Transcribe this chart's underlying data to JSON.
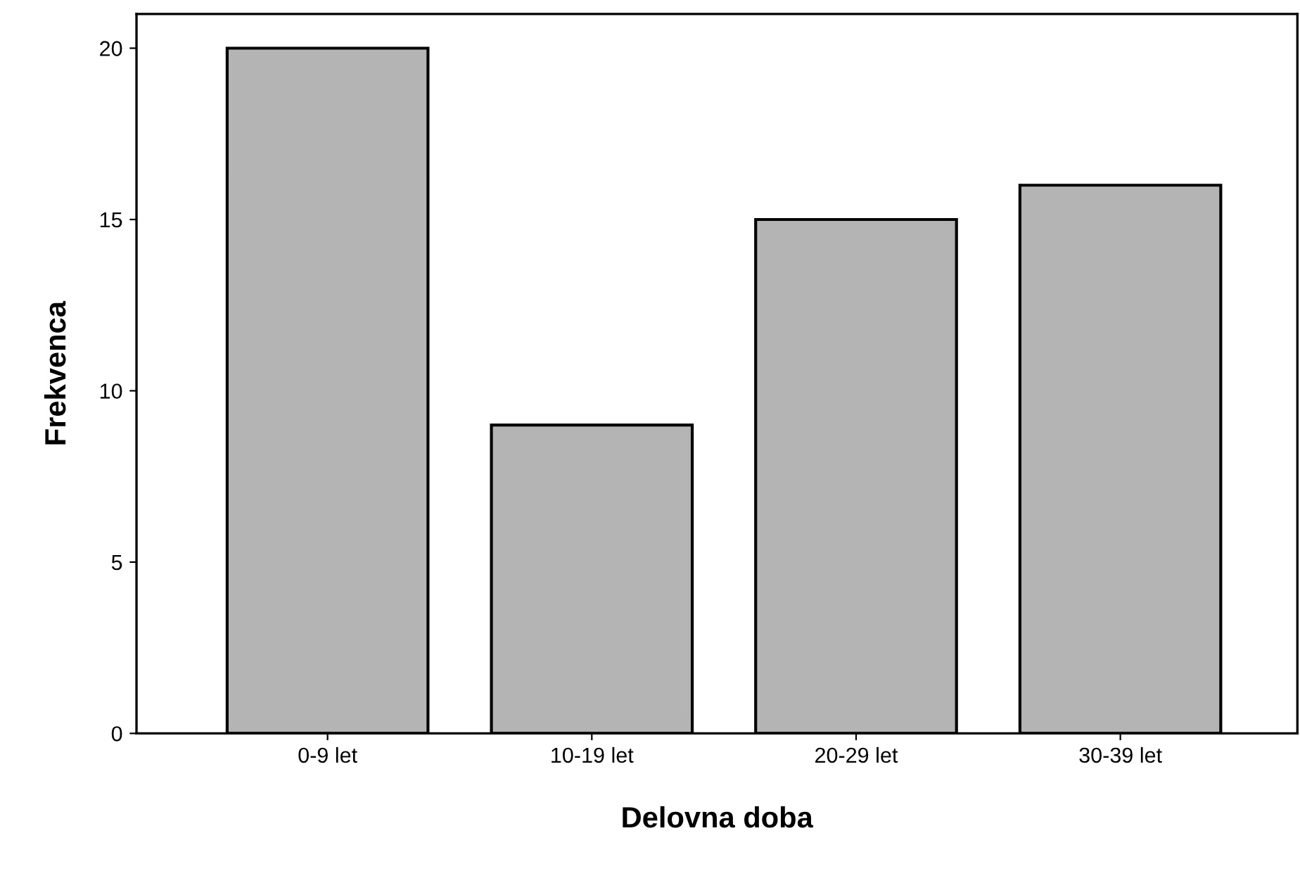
{
  "chart_data": {
    "type": "bar",
    "xlabel": "Delovna doba",
    "ylabel": "Frekvenca",
    "categories": [
      "0-9 let",
      "10-19 let",
      "20-29 let",
      "30-39 let"
    ],
    "values": [
      20,
      9,
      15,
      16
    ],
    "color": "#b4b4b4",
    "ylim": [
      0,
      21
    ],
    "yticks": [
      0,
      5,
      10,
      15,
      20
    ],
    "grid": false,
    "legend": false
  }
}
